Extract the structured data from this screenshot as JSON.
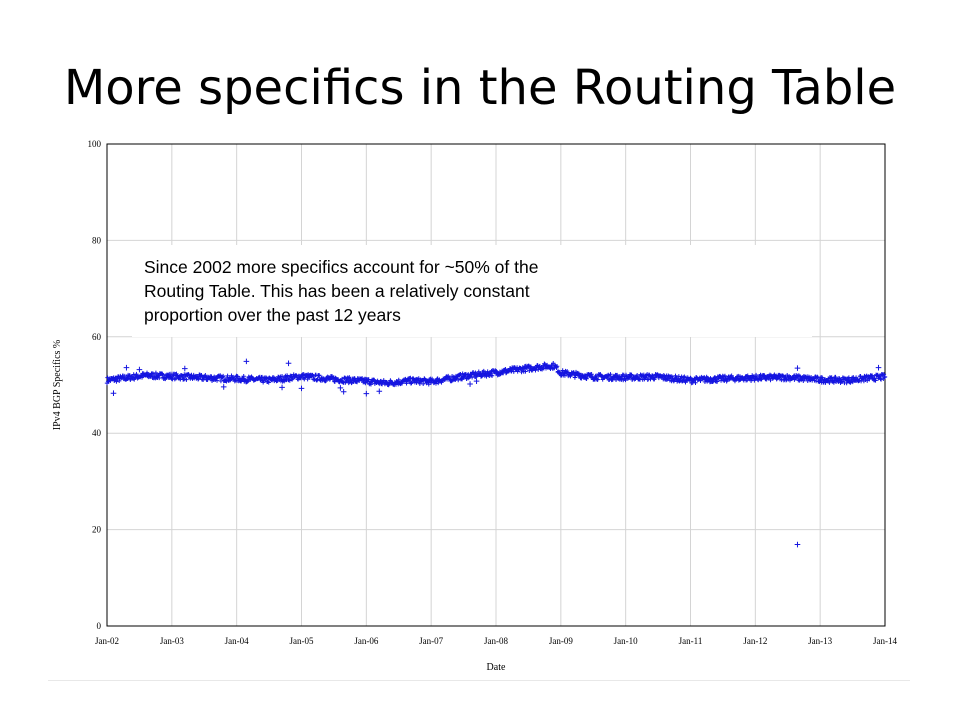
{
  "slide": {
    "title": "More specifics in the Routing Table"
  },
  "annotation": {
    "lines": [
      "Since 2002 more specifics account for ~50% of the",
      "Routing Table. This has been a relatively constant",
      "proportion over the past 12 years"
    ]
  },
  "chart_data": {
    "type": "scatter",
    "title": "",
    "xlabel": "Date",
    "ylabel": "IPv4 BGP Specifics %",
    "xlim": [
      2002.0,
      2014.0
    ],
    "ylim": [
      0,
      100
    ],
    "grid": true,
    "marker": "+",
    "color": "#1515e0",
    "x_ticks": [
      "Jan-02",
      "Jan-03",
      "Jan-04",
      "Jan-05",
      "Jan-06",
      "Jan-07",
      "Jan-08",
      "Jan-09",
      "Jan-10",
      "Jan-11",
      "Jan-12",
      "Jan-13",
      "Jan-14"
    ],
    "y_ticks": [
      0,
      20,
      40,
      60,
      80,
      100
    ],
    "series": [
      {
        "trend_x": [
          2002.0,
          2002.3,
          2002.6,
          2003.0,
          2003.5,
          2004.0,
          2004.5,
          2005.0,
          2005.5,
          2006.0,
          2006.3,
          2006.7,
          2007.0,
          2007.5,
          2008.0,
          2008.4,
          2008.7,
          2008.9,
          2009.0,
          2009.5,
          2010.0,
          2010.5,
          2011.0,
          2011.5,
          2012.0,
          2012.5,
          2013.0,
          2013.4,
          2014.0
        ],
        "trend_y": [
          51.0,
          51.5,
          52.0,
          51.8,
          51.5,
          51.3,
          51.0,
          51.8,
          51.2,
          50.8,
          50.4,
          50.9,
          50.7,
          51.8,
          52.6,
          53.3,
          53.8,
          54.0,
          52.5,
          51.7,
          51.6,
          51.7,
          51.0,
          51.3,
          51.5,
          51.6,
          51.1,
          51.0,
          51.7
        ],
        "outliers": [
          {
            "x": 2002.1,
            "y": 48.3
          },
          {
            "x": 2002.3,
            "y": 53.6
          },
          {
            "x": 2002.5,
            "y": 53.2
          },
          {
            "x": 2003.2,
            "y": 53.4
          },
          {
            "x": 2003.8,
            "y": 49.6
          },
          {
            "x": 2004.15,
            "y": 54.9
          },
          {
            "x": 2004.7,
            "y": 49.5
          },
          {
            "x": 2004.8,
            "y": 54.5
          },
          {
            "x": 2005.0,
            "y": 49.3
          },
          {
            "x": 2005.6,
            "y": 49.4
          },
          {
            "x": 2005.65,
            "y": 48.6
          },
          {
            "x": 2006.0,
            "y": 48.2
          },
          {
            "x": 2006.2,
            "y": 48.7
          },
          {
            "x": 2007.6,
            "y": 50.2
          },
          {
            "x": 2007.7,
            "y": 50.8
          },
          {
            "x": 2012.65,
            "y": 53.5
          },
          {
            "x": 2012.65,
            "y": 16.9
          },
          {
            "x": 2013.9,
            "y": 53.6
          }
        ]
      }
    ]
  }
}
